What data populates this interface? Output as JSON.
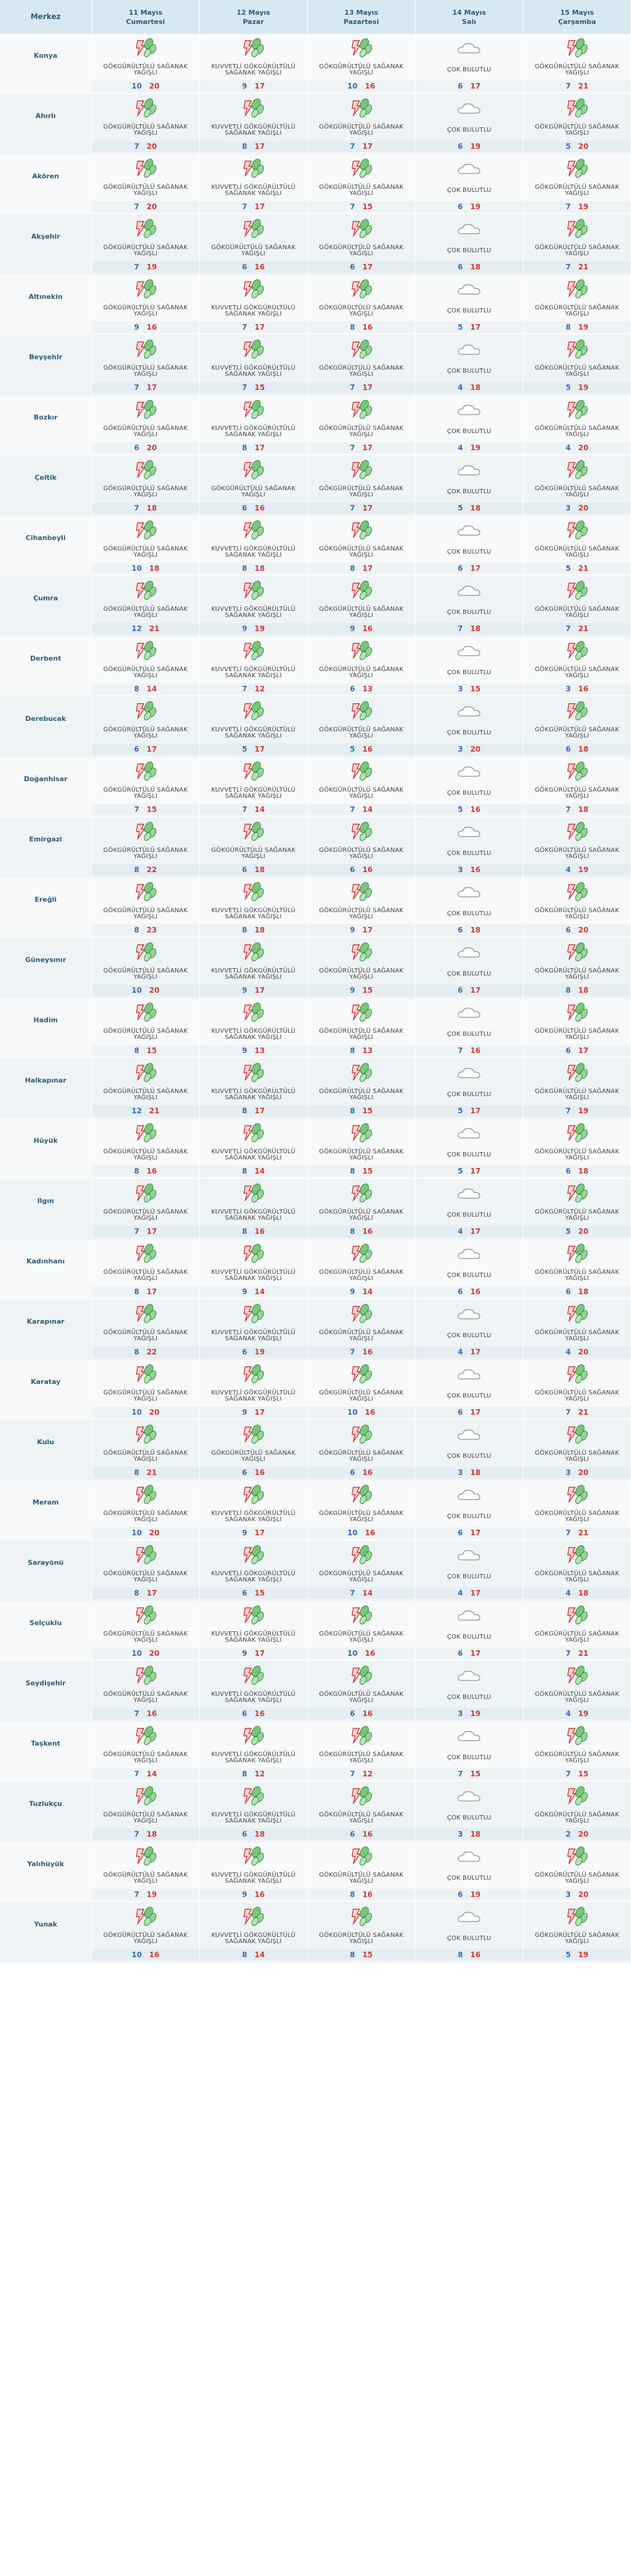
{
  "header": {
    "merkez_label": "Merkez",
    "days": [
      {
        "date": "11 Mayıs",
        "weekday": "Cumartesi"
      },
      {
        "date": "12 Mayıs",
        "weekday": "Pazar"
      },
      {
        "date": "13 Mayıs",
        "weekday": "Pazartesi"
      },
      {
        "date": "14 Mayıs",
        "weekday": "Salı"
      },
      {
        "date": "15 Mayıs",
        "weekday": "Çarşamba"
      }
    ]
  },
  "conditions": {
    "G": {
      "text": "GÖKGÜRÜLTÜLÜ SAĞANAK YAĞIŞLI",
      "icon": "thunderstorm-rain-icon"
    },
    "K": {
      "text": "KUVVETLİ GÖKGÜRÜLTÜLÜ SAĞANAK YAĞIŞLI",
      "icon": "thunderstorm-rain-icon"
    },
    "C": {
      "text": "ÇOK BULUTLU",
      "icon": "cloud-icon"
    }
  },
  "rows": [
    {
      "name": "Konya",
      "days": [
        [
          "G",
          10,
          20
        ],
        [
          "K",
          9,
          17
        ],
        [
          "G",
          10,
          16
        ],
        [
          "C",
          6,
          17
        ],
        [
          "G",
          7,
          21
        ]
      ]
    },
    {
      "name": "Ahırlı",
      "days": [
        [
          "G",
          7,
          20
        ],
        [
          "K",
          8,
          17
        ],
        [
          "G",
          7,
          17
        ],
        [
          "C",
          6,
          19
        ],
        [
          "G",
          5,
          20
        ]
      ]
    },
    {
      "name": "Akören",
      "days": [
        [
          "G",
          7,
          20
        ],
        [
          "K",
          7,
          17
        ],
        [
          "G",
          7,
          15
        ],
        [
          "C",
          6,
          19
        ],
        [
          "G",
          7,
          19
        ]
      ]
    },
    {
      "name": "Akşehir",
      "days": [
        [
          "G",
          7,
          19
        ],
        [
          "G",
          6,
          16
        ],
        [
          "G",
          6,
          17
        ],
        [
          "C",
          6,
          18
        ],
        [
          "G",
          7,
          21
        ]
      ]
    },
    {
      "name": "Altınekin",
      "days": [
        [
          "G",
          9,
          16
        ],
        [
          "K",
          7,
          17
        ],
        [
          "G",
          8,
          16
        ],
        [
          "C",
          5,
          17
        ],
        [
          "G",
          8,
          19
        ]
      ]
    },
    {
      "name": "Beyşehir",
      "days": [
        [
          "G",
          7,
          17
        ],
        [
          "K",
          7,
          15
        ],
        [
          "G",
          7,
          17
        ],
        [
          "C",
          4,
          18
        ],
        [
          "G",
          5,
          19
        ]
      ]
    },
    {
      "name": "Bozkır",
      "days": [
        [
          "G",
          6,
          20
        ],
        [
          "K",
          8,
          17
        ],
        [
          "G",
          7,
          17
        ],
        [
          "C",
          4,
          19
        ],
        [
          "G",
          4,
          20
        ]
      ]
    },
    {
      "name": "Çeltik",
      "days": [
        [
          "G",
          7,
          18
        ],
        [
          "G",
          6,
          16
        ],
        [
          "G",
          7,
          17
        ],
        [
          "C",
          5,
          18
        ],
        [
          "G",
          3,
          20
        ]
      ]
    },
    {
      "name": "Cihanbeyli",
      "days": [
        [
          "G",
          10,
          18
        ],
        [
          "K",
          8,
          18
        ],
        [
          "G",
          8,
          17
        ],
        [
          "C",
          6,
          17
        ],
        [
          "G",
          5,
          21
        ]
      ]
    },
    {
      "name": "Çumra",
      "days": [
        [
          "G",
          12,
          21
        ],
        [
          "K",
          9,
          19
        ],
        [
          "G",
          9,
          16
        ],
        [
          "C",
          7,
          18
        ],
        [
          "G",
          7,
          21
        ]
      ]
    },
    {
      "name": "Derbent",
      "days": [
        [
          "G",
          8,
          14
        ],
        [
          "K",
          7,
          12
        ],
        [
          "G",
          6,
          13
        ],
        [
          "C",
          3,
          15
        ],
        [
          "G",
          3,
          16
        ]
      ]
    },
    {
      "name": "Derebucak",
      "days": [
        [
          "G",
          6,
          17
        ],
        [
          "K",
          5,
          17
        ],
        [
          "G",
          5,
          16
        ],
        [
          "C",
          3,
          20
        ],
        [
          "G",
          6,
          18
        ]
      ]
    },
    {
      "name": "Doğanhisar",
      "days": [
        [
          "G",
          7,
          15
        ],
        [
          "K",
          7,
          14
        ],
        [
          "G",
          7,
          14
        ],
        [
          "C",
          5,
          16
        ],
        [
          "G",
          7,
          18
        ]
      ]
    },
    {
      "name": "Emirgazi",
      "days": [
        [
          "G",
          8,
          22
        ],
        [
          "G",
          6,
          18
        ],
        [
          "G",
          6,
          16
        ],
        [
          "C",
          3,
          16
        ],
        [
          "G",
          4,
          19
        ]
      ]
    },
    {
      "name": "Ereğli",
      "days": [
        [
          "G",
          8,
          23
        ],
        [
          "K",
          8,
          18
        ],
        [
          "G",
          9,
          17
        ],
        [
          "C",
          6,
          18
        ],
        [
          "G",
          6,
          20
        ]
      ]
    },
    {
      "name": "Güneysınır",
      "days": [
        [
          "G",
          10,
          20
        ],
        [
          "K",
          9,
          17
        ],
        [
          "G",
          9,
          15
        ],
        [
          "C",
          6,
          17
        ],
        [
          "G",
          8,
          18
        ]
      ]
    },
    {
      "name": "Hadim",
      "days": [
        [
          "G",
          8,
          15
        ],
        [
          "K",
          9,
          13
        ],
        [
          "G",
          8,
          13
        ],
        [
          "C",
          7,
          16
        ],
        [
          "G",
          6,
          17
        ]
      ]
    },
    {
      "name": "Halkapınar",
      "days": [
        [
          "G",
          12,
          21
        ],
        [
          "K",
          8,
          17
        ],
        [
          "G",
          8,
          15
        ],
        [
          "C",
          5,
          17
        ],
        [
          "G",
          7,
          19
        ]
      ]
    },
    {
      "name": "Hüyük",
      "days": [
        [
          "G",
          8,
          16
        ],
        [
          "K",
          8,
          14
        ],
        [
          "G",
          8,
          15
        ],
        [
          "C",
          5,
          17
        ],
        [
          "G",
          6,
          18
        ]
      ]
    },
    {
      "name": "Ilgın",
      "days": [
        [
          "G",
          7,
          17
        ],
        [
          "K",
          8,
          16
        ],
        [
          "G",
          8,
          16
        ],
        [
          "C",
          4,
          17
        ],
        [
          "G",
          5,
          20
        ]
      ]
    },
    {
      "name": "Kadınhanı",
      "days": [
        [
          "G",
          8,
          17
        ],
        [
          "K",
          9,
          14
        ],
        [
          "G",
          9,
          14
        ],
        [
          "C",
          6,
          16
        ],
        [
          "G",
          6,
          18
        ]
      ]
    },
    {
      "name": "Karapınar",
      "days": [
        [
          "G",
          8,
          22
        ],
        [
          "K",
          6,
          19
        ],
        [
          "G",
          7,
          16
        ],
        [
          "C",
          4,
          17
        ],
        [
          "G",
          4,
          20
        ]
      ]
    },
    {
      "name": "Karatay",
      "days": [
        [
          "G",
          10,
          20
        ],
        [
          "K",
          9,
          17
        ],
        [
          "G",
          10,
          16
        ],
        [
          "C",
          6,
          17
        ],
        [
          "G",
          7,
          21
        ]
      ]
    },
    {
      "name": "Kulu",
      "days": [
        [
          "G",
          8,
          21
        ],
        [
          "G",
          6,
          16
        ],
        [
          "G",
          6,
          16
        ],
        [
          "C",
          3,
          18
        ],
        [
          "G",
          3,
          20
        ]
      ]
    },
    {
      "name": "Meram",
      "days": [
        [
          "G",
          10,
          20
        ],
        [
          "K",
          9,
          17
        ],
        [
          "G",
          10,
          16
        ],
        [
          "C",
          6,
          17
        ],
        [
          "G",
          7,
          21
        ]
      ]
    },
    {
      "name": "Sarayönü",
      "days": [
        [
          "G",
          8,
          17
        ],
        [
          "K",
          6,
          15
        ],
        [
          "G",
          7,
          14
        ],
        [
          "C",
          4,
          17
        ],
        [
          "G",
          4,
          18
        ]
      ]
    },
    {
      "name": "Selçuklu",
      "days": [
        [
          "G",
          10,
          20
        ],
        [
          "K",
          9,
          17
        ],
        [
          "G",
          10,
          16
        ],
        [
          "C",
          6,
          17
        ],
        [
          "G",
          7,
          21
        ]
      ]
    },
    {
      "name": "Seydişehir",
      "days": [
        [
          "G",
          7,
          16
        ],
        [
          "K",
          6,
          16
        ],
        [
          "G",
          6,
          16
        ],
        [
          "C",
          3,
          19
        ],
        [
          "G",
          4,
          19
        ]
      ]
    },
    {
      "name": "Taşkent",
      "days": [
        [
          "G",
          7,
          14
        ],
        [
          "K",
          8,
          12
        ],
        [
          "G",
          7,
          12
        ],
        [
          "C",
          7,
          15
        ],
        [
          "G",
          7,
          15
        ]
      ]
    },
    {
      "name": "Tuzlukçu",
      "days": [
        [
          "G",
          7,
          18
        ],
        [
          "K",
          6,
          18
        ],
        [
          "G",
          6,
          16
        ],
        [
          "C",
          3,
          18
        ],
        [
          "G",
          2,
          20
        ]
      ]
    },
    {
      "name": "Yalıhüyük",
      "days": [
        [
          "G",
          7,
          19
        ],
        [
          "K",
          9,
          16
        ],
        [
          "G",
          8,
          16
        ],
        [
          "C",
          6,
          19
        ],
        [
          "G",
          3,
          20
        ]
      ]
    },
    {
      "name": "Yunak",
      "days": [
        [
          "G",
          10,
          16
        ],
        [
          "K",
          8,
          14
        ],
        [
          "G",
          8,
          15
        ],
        [
          "C",
          8,
          16
        ],
        [
          "G",
          5,
          19
        ]
      ]
    }
  ]
}
